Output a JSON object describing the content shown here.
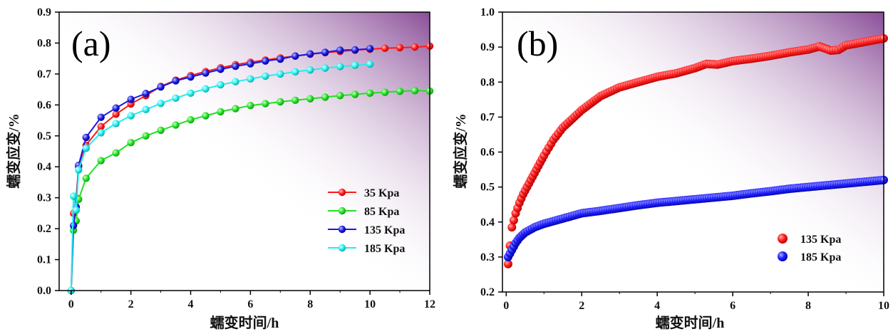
{
  "chart_data": [
    {
      "panel": "(a)",
      "type": "line",
      "xlabel": "蠕变时间/h",
      "ylabel": "蠕变应变/%",
      "xlim": [
        -0.4,
        12
      ],
      "ylim": [
        0,
        0.9
      ],
      "xticks": [
        0,
        2,
        4,
        6,
        8,
        10,
        12
      ],
      "yticks": [
        0.0,
        0.1,
        0.2,
        0.3,
        0.4,
        0.5,
        0.6,
        0.7,
        0.8,
        0.9
      ],
      "legend": "center-right",
      "series": [
        {
          "name": "35 Kpa",
          "color": "#ff1a1a",
          "x": [
            0,
            0.08,
            0.17,
            0.25,
            0.5,
            1,
            1.5,
            2,
            2.5,
            3,
            3.5,
            4,
            4.5,
            5,
            5.5,
            6,
            6.5,
            7,
            7.5,
            8,
            8.5,
            9,
            9.5,
            10,
            10.5,
            11,
            11.5,
            12
          ],
          "y": [
            0,
            0.25,
            0.3,
            0.4,
            0.47,
            0.53,
            0.57,
            0.603,
            0.63,
            0.66,
            0.68,
            0.695,
            0.708,
            0.72,
            0.73,
            0.738,
            0.745,
            0.752,
            0.758,
            0.764,
            0.769,
            0.773,
            0.777,
            0.78,
            0.783,
            0.785,
            0.787,
            0.79
          ]
        },
        {
          "name": "85 Kpa",
          "color": "#22e022",
          "x": [
            0,
            0.08,
            0.17,
            0.25,
            0.5,
            1,
            1.5,
            2,
            2.5,
            3,
            3.5,
            4,
            4.5,
            5,
            5.5,
            6,
            6.5,
            7,
            7.5,
            8,
            8.5,
            9,
            9.5,
            10,
            10.5,
            11,
            11.5,
            12
          ],
          "y": [
            0,
            0.195,
            0.225,
            0.295,
            0.363,
            0.42,
            0.445,
            0.478,
            0.5,
            0.518,
            0.535,
            0.552,
            0.565,
            0.578,
            0.588,
            0.598,
            0.604,
            0.61,
            0.615,
            0.62,
            0.625,
            0.63,
            0.634,
            0.638,
            0.641,
            0.644,
            0.646,
            0.645
          ]
        },
        {
          "name": "135 Kpa",
          "color": "#1a1ae0",
          "x": [
            0,
            0.08,
            0.17,
            0.25,
            0.5,
            1,
            1.5,
            2,
            2.5,
            3,
            3.5,
            4,
            4.5,
            5,
            5.5,
            6,
            6.5,
            7,
            7.5,
            8,
            8.5,
            9,
            9.5,
            10
          ],
          "y": [
            0,
            0.21,
            0.27,
            0.405,
            0.495,
            0.56,
            0.59,
            0.618,
            0.637,
            0.658,
            0.678,
            0.69,
            0.703,
            0.715,
            0.725,
            0.733,
            0.742,
            0.748,
            0.758,
            0.765,
            0.77,
            0.777,
            0.778,
            0.782
          ]
        },
        {
          "name": "185 Kpa",
          "color": "#22eeee",
          "x": [
            0,
            0.08,
            0.17,
            0.25,
            0.5,
            1,
            1.5,
            2,
            2.5,
            3,
            3.5,
            4,
            4.5,
            5,
            5.5,
            6,
            6.5,
            7,
            7.5,
            8,
            8.5,
            9,
            9.5,
            10
          ],
          "y": [
            0,
            0.305,
            0.26,
            0.39,
            0.46,
            0.51,
            0.54,
            0.565,
            0.585,
            0.605,
            0.622,
            0.638,
            0.652,
            0.665,
            0.675,
            0.684,
            0.693,
            0.7,
            0.707,
            0.713,
            0.719,
            0.724,
            0.728,
            0.732
          ]
        }
      ]
    },
    {
      "panel": "(b)",
      "type": "scatter",
      "xlabel": "蠕变时间/h",
      "ylabel": "蠕变应变/%",
      "xlim": [
        -0.1,
        10
      ],
      "ylim": [
        0.2,
        1.0
      ],
      "xticks": [
        0,
        2,
        4,
        6,
        8,
        10
      ],
      "yticks": [
        0.2,
        0.3,
        0.4,
        0.5,
        0.6,
        0.7,
        0.8,
        0.9,
        1.0
      ],
      "legend": "bottom-right",
      "series": [
        {
          "name": "135 Kpa",
          "color": "#ff1a1a",
          "x": [
            0.05,
            0.15,
            0.25,
            0.35,
            0.45,
            0.55,
            0.65,
            0.75,
            0.85,
            1,
            1.25,
            1.5,
            1.75,
            2,
            2.5,
            3,
            3.5,
            4,
            4.5,
            5,
            5.3,
            5.6,
            6,
            6.5,
            7,
            7.5,
            8,
            8.3,
            8.6,
            8.8,
            9,
            9.5,
            10
          ],
          "y": [
            0.28,
            0.385,
            0.425,
            0.455,
            0.48,
            0.5,
            0.52,
            0.54,
            0.56,
            0.59,
            0.635,
            0.67,
            0.695,
            0.72,
            0.76,
            0.785,
            0.8,
            0.815,
            0.825,
            0.84,
            0.852,
            0.85,
            0.86,
            0.867,
            0.875,
            0.885,
            0.893,
            0.902,
            0.89,
            0.892,
            0.905,
            0.915,
            0.925
          ]
        },
        {
          "name": "185 Kpa",
          "color": "#1a1ae0",
          "x": [
            0.05,
            0.15,
            0.25,
            0.35,
            0.5,
            0.75,
            1,
            1.5,
            2,
            2.5,
            3,
            3.5,
            4,
            4.5,
            5,
            5.5,
            6,
            6.5,
            7,
            7.5,
            8,
            8.5,
            9,
            9.5,
            10
          ],
          "y": [
            0.3,
            0.32,
            0.34,
            0.355,
            0.37,
            0.385,
            0.395,
            0.41,
            0.425,
            0.432,
            0.44,
            0.448,
            0.455,
            0.46,
            0.465,
            0.47,
            0.475,
            0.482,
            0.488,
            0.495,
            0.5,
            0.505,
            0.51,
            0.515,
            0.52
          ]
        }
      ]
    }
  ]
}
